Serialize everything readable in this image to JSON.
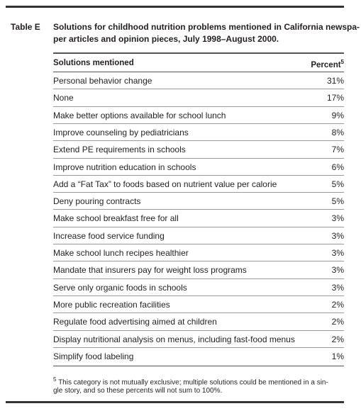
{
  "table_label": "Table E",
  "title_lines": [
    "Solutions for childhood nutrition problems mentioned in California newspa-",
    "per articles and opinion pieces, July 1998–August 2000."
  ],
  "table": {
    "header": [
      "Solutions mentioned",
      "Percent"
    ],
    "header_note_mark": "5",
    "rows": [
      [
        "Personal behavior change",
        "31%"
      ],
      [
        "None",
        "17%"
      ],
      [
        "Make better options available for school lunch",
        "9%"
      ],
      [
        "Improve counseling by pediatricians",
        "8%"
      ],
      [
        "Extend PE requirements in schools",
        "7%"
      ],
      [
        "Improve nutrition education in schools",
        "6%"
      ],
      [
        "Add a “Fat Tax” to foods based on nutrient value per calorie",
        "5%"
      ],
      [
        "Deny pouring contracts",
        "5%"
      ],
      [
        "Make school breakfast free for all",
        "3%"
      ],
      [
        "Increase food service funding",
        "3%"
      ],
      [
        "Make school lunch recipes healthier",
        "3%"
      ],
      [
        "Mandate that insurers pay for weight loss programs",
        "3%"
      ],
      [
        "Serve only organic foods in schools",
        "3%"
      ],
      [
        "More public recreation facilities",
        "2%"
      ],
      [
        "Regulate food advertising aimed at children",
        "2%"
      ],
      [
        "Display nutritional analysis on menus, including fast-food menus",
        "2%"
      ],
      [
        "Simplify food labeling",
        "1%"
      ]
    ]
  },
  "footnote": {
    "mark": "5",
    "lines": [
      "This category is not mutually exclusive; multiple solutions could be mentioned in a sin-",
      "gle story, and so these percents will not sum to 100%."
    ]
  }
}
